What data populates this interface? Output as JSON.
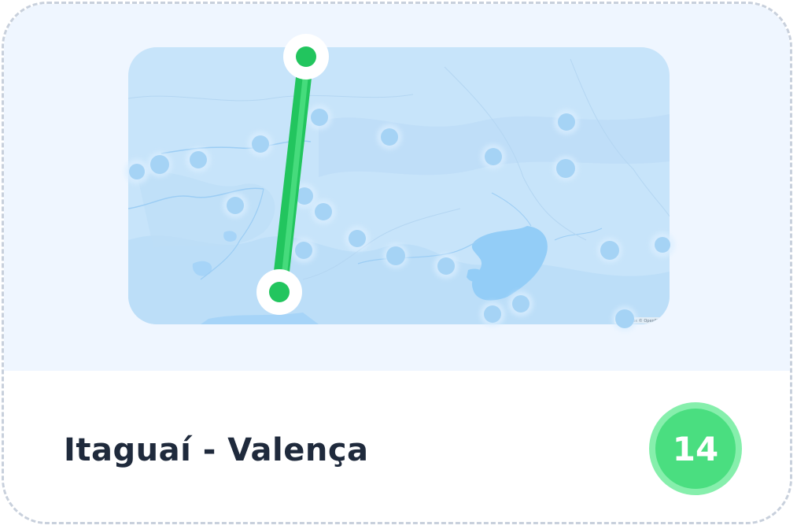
{
  "route": {
    "title": "Itaguaí - Valença",
    "count": "14"
  },
  "map": {
    "attribution": "© Mapbox © OpenStreetMap",
    "route_color": "#22c55e",
    "route_highlight": "#4ade80",
    "water_color": "#93cdf7",
    "land_color": "#c7e4fa",
    "marker_color": "#a5d3f5"
  },
  "icons": {
    "start": "route-start-pin-icon",
    "end": "route-end-pin-icon",
    "stop": "stop-marker-icon"
  }
}
